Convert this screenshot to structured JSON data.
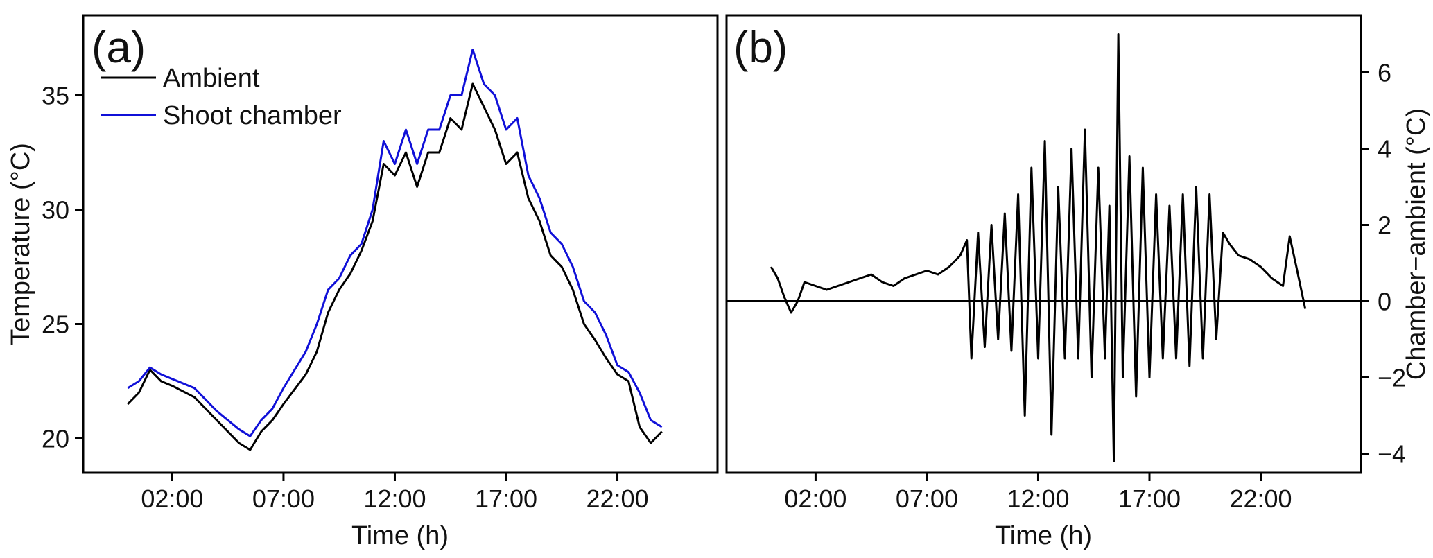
{
  "chart_data": [
    {
      "panel_label": "(a)",
      "type": "line",
      "xlabel": "Time (h)",
      "ylabel": "Temperature (°C)",
      "xlim": [
        -2.0,
        26.5
      ],
      "ylim": [
        18.5,
        38.5
      ],
      "xticks": [
        2,
        7,
        12,
        17,
        22
      ],
      "xtick_labels": [
        "02:00",
        "07:00",
        "12:00",
        "17:00",
        "22:00"
      ],
      "yticks": [
        20,
        25,
        30,
        35
      ],
      "ytick_labels": [
        "20",
        "25",
        "30",
        "35"
      ],
      "grid": false,
      "legend": "top-left",
      "series": [
        {
          "name": "Ambient",
          "color": "#000000",
          "x": [
            0.0,
            0.5,
            1.0,
            1.5,
            2.0,
            3.0,
            4.0,
            5.0,
            5.5,
            6.0,
            6.5,
            7.0,
            8.0,
            8.5,
            9.0,
            9.5,
            10.0,
            10.5,
            11.0,
            11.5,
            12.0,
            12.5,
            13.0,
            13.5,
            14.0,
            14.5,
            15.0,
            15.5,
            16.0,
            16.5,
            17.0,
            17.5,
            18.0,
            18.5,
            19.0,
            19.5,
            20.0,
            20.5,
            21.0,
            21.5,
            22.0,
            22.5,
            23.0,
            23.5,
            24.0
          ],
          "values": [
            21.5,
            22.0,
            23.0,
            22.5,
            22.3,
            21.8,
            20.8,
            19.8,
            19.5,
            20.3,
            20.8,
            21.5,
            22.8,
            23.8,
            25.5,
            26.5,
            27.2,
            28.2,
            29.5,
            32.0,
            31.5,
            32.5,
            31.0,
            32.5,
            32.5,
            34.0,
            33.5,
            35.5,
            34.5,
            33.5,
            32.0,
            32.5,
            30.5,
            29.5,
            28.0,
            27.5,
            26.5,
            25.0,
            24.3,
            23.5,
            22.8,
            22.5,
            20.5,
            19.8,
            20.3
          ]
        },
        {
          "name": "Shoot chamber",
          "color": "#1010d8",
          "x": [
            0.0,
            0.5,
            1.0,
            1.5,
            2.0,
            3.0,
            4.0,
            5.0,
            5.5,
            6.0,
            6.5,
            7.0,
            8.0,
            8.5,
            9.0,
            9.5,
            10.0,
            10.5,
            11.0,
            11.5,
            12.0,
            12.5,
            13.0,
            13.5,
            14.0,
            14.5,
            15.0,
            15.5,
            16.0,
            16.5,
            17.0,
            17.5,
            18.0,
            18.5,
            19.0,
            19.5,
            20.0,
            20.5,
            21.0,
            21.5,
            22.0,
            22.5,
            23.0,
            23.5,
            24.0
          ],
          "values": [
            22.2,
            22.5,
            23.1,
            22.8,
            22.6,
            22.2,
            21.2,
            20.4,
            20.1,
            20.8,
            21.3,
            22.2,
            23.8,
            25.0,
            26.5,
            27.0,
            28.0,
            28.5,
            30.0,
            33.0,
            32.0,
            33.5,
            32.0,
            33.5,
            33.5,
            35.0,
            35.0,
            37.0,
            35.5,
            35.0,
            33.5,
            34.0,
            31.5,
            30.5,
            29.0,
            28.5,
            27.5,
            26.0,
            25.5,
            24.5,
            23.2,
            22.9,
            22.0,
            20.8,
            20.5
          ]
        }
      ]
    },
    {
      "panel_label": "(b)",
      "type": "line",
      "xlabel": "Time (h)",
      "ylabel": "Chamber−ambient (°C)",
      "y_axis_position": "right",
      "xlim": [
        -2.0,
        26.5
      ],
      "ylim": [
        -4.5,
        7.5
      ],
      "xticks": [
        2,
        7,
        12,
        17,
        22
      ],
      "xtick_labels": [
        "02:00",
        "07:00",
        "12:00",
        "17:00",
        "22:00"
      ],
      "yticks": [
        -4,
        -2,
        0,
        2,
        4,
        6
      ],
      "ytick_labels": [
        "−4",
        "−2",
        "0",
        "2",
        "4",
        "6"
      ],
      "grid": false,
      "reference_line_y": 0,
      "series": [
        {
          "color": "#000000",
          "x": [
            0.0,
            0.3,
            0.6,
            0.9,
            1.2,
            1.5,
            2.0,
            2.5,
            3.0,
            3.5,
            4.0,
            4.5,
            5.0,
            5.5,
            6.0,
            6.5,
            7.0,
            7.5,
            8.0,
            8.5,
            8.8,
            9.0,
            9.3,
            9.6,
            9.9,
            10.2,
            10.5,
            10.8,
            11.1,
            11.4,
            11.7,
            12.0,
            12.3,
            12.6,
            12.9,
            13.2,
            13.5,
            13.8,
            14.1,
            14.4,
            14.7,
            15.0,
            15.2,
            15.4,
            15.6,
            15.8,
            16.1,
            16.4,
            16.7,
            17.0,
            17.3,
            17.6,
            17.9,
            18.2,
            18.5,
            18.8,
            19.1,
            19.4,
            19.7,
            20.0,
            20.3,
            20.6,
            21.0,
            21.5,
            22.0,
            22.5,
            23.0,
            23.3,
            23.6,
            24.0
          ],
          "values": [
            0.9,
            0.6,
            0.1,
            -0.3,
            0.0,
            0.5,
            0.4,
            0.3,
            0.4,
            0.5,
            0.6,
            0.7,
            0.5,
            0.4,
            0.6,
            0.7,
            0.8,
            0.7,
            0.9,
            1.2,
            1.6,
            -1.5,
            1.8,
            -1.2,
            2.0,
            -1.0,
            2.3,
            -1.3,
            2.8,
            -3.0,
            3.5,
            -1.5,
            4.2,
            -3.5,
            3.0,
            -1.5,
            4.0,
            -1.5,
            4.5,
            -2.0,
            3.5,
            -1.5,
            2.5,
            -4.2,
            7.0,
            -2.0,
            3.8,
            -2.5,
            3.5,
            -2.0,
            2.8,
            -1.5,
            2.5,
            -1.5,
            2.8,
            -1.7,
            3.0,
            -1.5,
            2.8,
            -1.0,
            1.8,
            1.5,
            1.2,
            1.1,
            0.9,
            0.6,
            0.4,
            1.7,
            0.9,
            -0.2
          ]
        }
      ]
    }
  ]
}
